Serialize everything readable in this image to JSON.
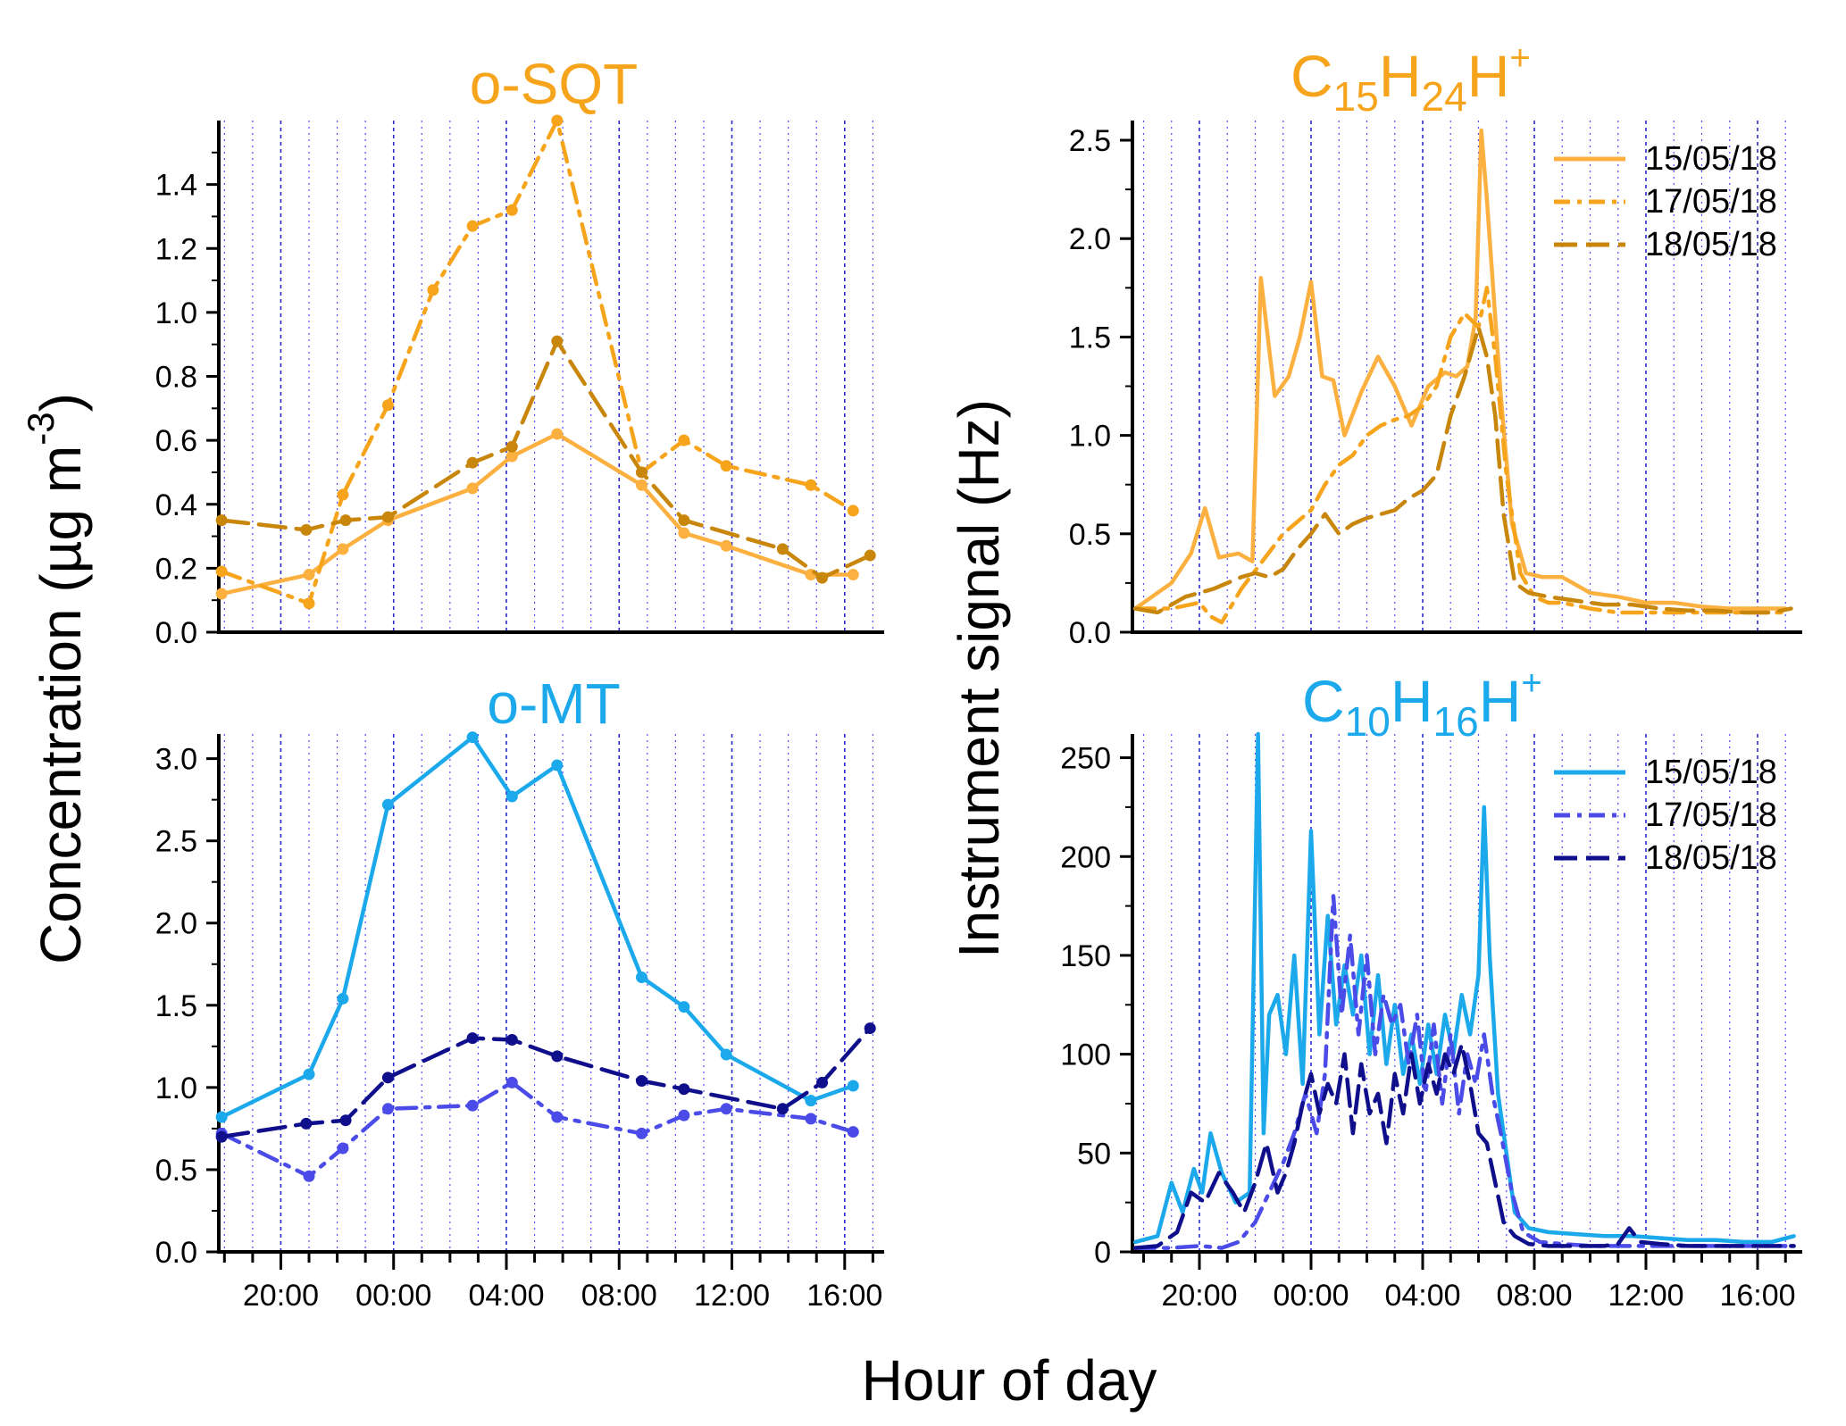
{
  "figure": {
    "shared_xlabel": "Hour of day",
    "left_ylabel_main": "Concentration (µg m",
    "left_ylabel_exp": "-3",
    "left_ylabel_close": ")",
    "right_ylabel": "Instrument signal (Hz)"
  },
  "colors": {
    "light_orange": "#FBB040",
    "mid_orange": "#F7A41D",
    "dark_orange": "#C8860B",
    "light_blue": "#1CA9EC",
    "mid_blue": "#4B4BE8",
    "dark_blue": "#0F0F8C",
    "grid_dotted": "#4D4DFF",
    "grid_dashed": "#2A2AD0"
  },
  "chart_data": [
    {
      "id": "osqt",
      "type": "line",
      "title": "o-SQT",
      "title_color": "#F7A41D",
      "xlabel": "Hour of day",
      "ylabel": "Concentration (µg m-3)",
      "xlim": [
        -6.2,
        17.4
      ],
      "ylim": [
        0,
        1.6
      ],
      "yticks": [
        0.0,
        0.2,
        0.4,
        0.6,
        0.8,
        1.0,
        1.2,
        1.4
      ],
      "ytick_labels": [
        "0.0",
        "0.2",
        "0.4",
        "0.6",
        "0.8",
        "1.0",
        "1.2",
        "1.4"
      ],
      "series": [
        {
          "name": "15/05/18",
          "style": "solid",
          "color": "#FBB040",
          "x": [
            -6.1,
            -3.0,
            -1.8,
            -0.2,
            2.8,
            4.2,
            5.8,
            8.8,
            10.3,
            11.8,
            14.8,
            16.3
          ],
          "y": [
            0.12,
            0.18,
            0.26,
            0.35,
            0.45,
            0.55,
            0.62,
            0.46,
            0.31,
            0.27,
            0.18,
            0.18
          ]
        },
        {
          "name": "17/05/18",
          "style": "dashdot",
          "color": "#F7A41D",
          "x": [
            -6.1,
            -3.0,
            -1.8,
            -0.2,
            1.4,
            2.8,
            4.2,
            5.8,
            8.8,
            10.3,
            11.8,
            14.8,
            16.3
          ],
          "y": [
            0.19,
            0.09,
            0.43,
            0.71,
            1.07,
            1.27,
            1.32,
            1.6,
            0.5,
            0.6,
            0.52,
            0.46,
            0.38
          ]
        },
        {
          "name": "18/05/18",
          "style": "dashed",
          "color": "#C8860B",
          "x": [
            -6.1,
            -3.1,
            -1.7,
            -0.2,
            2.8,
            4.2,
            5.8,
            8.8,
            10.3,
            13.8,
            15.2,
            16.9
          ],
          "y": [
            0.35,
            0.32,
            0.35,
            0.36,
            0.53,
            0.58,
            0.91,
            0.5,
            0.35,
            0.26,
            0.17,
            0.24
          ]
        }
      ]
    },
    {
      "id": "omt",
      "type": "line",
      "title": "o-MT",
      "title_color": "#1CA9EC",
      "xlabel": "Hour of day",
      "ylabel": "Concentration (µg m-3)",
      "xlim": [
        -6.2,
        17.4
      ],
      "ylim": [
        0,
        3.15
      ],
      "yticks": [
        0.0,
        0.5,
        1.0,
        1.5,
        2.0,
        2.5,
        3.0
      ],
      "ytick_labels": [
        "0.0",
        "0.5",
        "1.0",
        "1.5",
        "2.0",
        "2.5",
        "3.0"
      ],
      "xticks": [
        -4,
        0,
        4,
        8,
        12,
        16
      ],
      "xtick_labels": [
        "20:00",
        "00:00",
        "04:00",
        "08:00",
        "12:00",
        "16:00"
      ],
      "series": [
        {
          "name": "15/05/18",
          "style": "solid",
          "color": "#1CA9EC",
          "x": [
            -6.1,
            -3.0,
            -1.8,
            -0.2,
            2.8,
            4.2,
            5.8,
            8.8,
            10.3,
            11.8,
            14.8,
            16.3
          ],
          "y": [
            0.82,
            1.08,
            1.54,
            2.72,
            3.13,
            2.77,
            2.96,
            1.67,
            1.49,
            1.2,
            0.92,
            1.01
          ]
        },
        {
          "name": "17/05/18",
          "style": "dashdot",
          "color": "#4B4BE8",
          "x": [
            -6.1,
            -3.0,
            -1.8,
            -0.2,
            2.8,
            4.2,
            5.8,
            8.8,
            10.3,
            11.8,
            14.8,
            16.3
          ],
          "y": [
            0.72,
            0.46,
            0.63,
            0.87,
            0.89,
            1.03,
            0.82,
            0.72,
            0.83,
            0.87,
            0.81,
            0.73
          ]
        },
        {
          "name": "18/05/18",
          "style": "dashed",
          "color": "#0F0F8C",
          "x": [
            -6.1,
            -3.1,
            -1.7,
            -0.2,
            2.8,
            4.2,
            5.8,
            8.8,
            10.3,
            13.8,
            15.2,
            16.9
          ],
          "y": [
            0.7,
            0.78,
            0.8,
            1.06,
            1.3,
            1.29,
            1.19,
            1.04,
            0.99,
            0.87,
            1.03,
            1.36
          ]
        }
      ]
    },
    {
      "id": "c15",
      "type": "line",
      "title_base": "C",
      "title_sub1": "15",
      "title_mid": "H",
      "title_sub2": "24",
      "title_end": "H",
      "title_sup": "+",
      "title_color": "#F7A41D",
      "xlabel": "Hour of day",
      "ylabel": "Instrument signal (Hz)",
      "xlim": [
        -6.4,
        17.6
      ],
      "ylim": [
        0,
        2.6
      ],
      "yticks": [
        0.0,
        0.5,
        1.0,
        1.5,
        2.0,
        2.5
      ],
      "ytick_labels": [
        "0.0",
        "0.5",
        "1.0",
        "1.5",
        "2.0",
        "2.5"
      ],
      "legend": "top-right",
      "series": [
        {
          "name": "15/05/18",
          "style": "solid",
          "color": "#FBB040",
          "x": [
            -6.3,
            -5.0,
            -4.3,
            -3.8,
            -3.3,
            -2.6,
            -2.1,
            -1.8,
            -1.3,
            -0.8,
            -0.4,
            0.0,
            0.4,
            0.8,
            1.2,
            1.8,
            2.4,
            3.0,
            3.6,
            4.2,
            4.8,
            5.2,
            5.6,
            5.9,
            6.1,
            6.3,
            6.5,
            6.8,
            7.2,
            7.7,
            8.3,
            9.0,
            10.0,
            11.0,
            12.0,
            13.0,
            14.0,
            15.0,
            16.0,
            17.0
          ],
          "y": [
            0.12,
            0.25,
            0.4,
            0.63,
            0.38,
            0.4,
            0.36,
            1.8,
            1.2,
            1.3,
            1.5,
            1.78,
            1.3,
            1.28,
            1.0,
            1.22,
            1.4,
            1.25,
            1.05,
            1.25,
            1.32,
            1.3,
            1.35,
            1.6,
            2.55,
            2.2,
            1.8,
            1.2,
            0.55,
            0.3,
            0.28,
            0.28,
            0.2,
            0.18,
            0.15,
            0.15,
            0.13,
            0.12,
            0.12,
            0.12
          ]
        },
        {
          "name": "17/05/18",
          "style": "dashdot",
          "color": "#F7A41D",
          "x": [
            -6.3,
            -5.0,
            -4.0,
            -3.6,
            -3.2,
            -2.5,
            -1.8,
            -1.0,
            0.0,
            0.5,
            1.0,
            1.5,
            2.0,
            2.5,
            3.0,
            3.5,
            4.0,
            4.5,
            5.0,
            5.5,
            6.0,
            6.3,
            6.6,
            7.0,
            7.5,
            8.0,
            8.5,
            9.0,
            10.0,
            11.0,
            12.0,
            13.0,
            14.0,
            15.0,
            16.0,
            17.0
          ],
          "y": [
            0.12,
            0.12,
            0.15,
            0.08,
            0.05,
            0.22,
            0.35,
            0.5,
            0.62,
            0.75,
            0.85,
            0.9,
            1.0,
            1.05,
            1.08,
            1.1,
            1.15,
            1.25,
            1.5,
            1.62,
            1.55,
            1.75,
            1.4,
            0.8,
            0.3,
            0.18,
            0.15,
            0.15,
            0.12,
            0.1,
            0.1,
            0.1,
            0.1,
            0.1,
            0.1,
            0.1
          ]
        },
        {
          "name": "18/05/18",
          "style": "dashed",
          "color": "#C8860B",
          "x": [
            -6.3,
            -5.5,
            -4.5,
            -3.5,
            -2.5,
            -2.0,
            -1.5,
            -1.0,
            -0.5,
            0.0,
            0.5,
            1.0,
            1.5,
            2.0,
            2.5,
            3.0,
            3.5,
            4.0,
            4.5,
            5.0,
            5.5,
            6.0,
            6.3,
            6.6,
            6.9,
            7.3,
            7.8,
            8.5,
            9.5,
            10.5,
            11.5,
            12.5,
            13.5,
            14.5,
            15.5,
            16.5,
            17.2
          ],
          "y": [
            0.12,
            0.1,
            0.18,
            0.22,
            0.28,
            0.3,
            0.28,
            0.32,
            0.42,
            0.5,
            0.6,
            0.5,
            0.55,
            0.58,
            0.6,
            0.62,
            0.68,
            0.72,
            0.8,
            1.1,
            1.3,
            1.55,
            1.4,
            1.1,
            0.6,
            0.25,
            0.2,
            0.18,
            0.16,
            0.14,
            0.14,
            0.12,
            0.11,
            0.11,
            0.1,
            0.1,
            0.12
          ]
        }
      ]
    },
    {
      "id": "c10",
      "type": "line",
      "title_base": "C",
      "title_sub1": "10",
      "title_mid": "H",
      "title_sub2": "16",
      "title_end": "H",
      "title_sup": "+",
      "title_color": "#1CA9EC",
      "xlabel": "Hour of day",
      "ylabel": "Instrument signal (Hz)",
      "xlim": [
        -6.4,
        17.6
      ],
      "ylim": [
        0,
        262
      ],
      "yticks": [
        0,
        50,
        100,
        150,
        200,
        250
      ],
      "ytick_labels": [
        "0",
        "50",
        "100",
        "150",
        "200",
        "250"
      ],
      "xticks": [
        -4,
        0,
        4,
        8,
        12,
        16
      ],
      "xtick_labels": [
        "20:00",
        "00:00",
        "04:00",
        "08:00",
        "12:00",
        "16:00"
      ],
      "legend": "top-right",
      "series": [
        {
          "name": "15/05/18",
          "style": "solid",
          "color": "#1CA9EC",
          "x": [
            -6.3,
            -5.5,
            -5.0,
            -4.6,
            -4.2,
            -3.9,
            -3.6,
            -3.2,
            -2.7,
            -2.2,
            -1.9,
            -1.7,
            -1.5,
            -1.2,
            -0.9,
            -0.6,
            -0.3,
            0.0,
            0.3,
            0.6,
            0.9,
            1.2,
            1.5,
            1.8,
            2.1,
            2.4,
            2.7,
            3.0,
            3.3,
            3.6,
            3.9,
            4.2,
            4.5,
            4.8,
            5.1,
            5.4,
            5.7,
            6.0,
            6.2,
            6.4,
            6.7,
            7.0,
            7.3,
            7.8,
            8.5,
            9.5,
            10.5,
            11.5,
            12.5,
            13.5,
            14.5,
            15.5,
            16.5,
            17.3
          ],
          "y": [
            5,
            8,
            35,
            20,
            42,
            30,
            60,
            40,
            25,
            30,
            262,
            60,
            120,
            130,
            100,
            150,
            85,
            213,
            110,
            170,
            115,
            145,
            120,
            150,
            100,
            140,
            95,
            125,
            90,
            110,
            85,
            115,
            90,
            120,
            100,
            130,
            110,
            140,
            225,
            150,
            80,
            50,
            20,
            12,
            10,
            9,
            8,
            8,
            7,
            6,
            6,
            5,
            5,
            8
          ]
        },
        {
          "name": "17/05/18",
          "style": "dashdot",
          "color": "#4B4BE8",
          "x": [
            -6.3,
            -5.0,
            -4.0,
            -3.2,
            -2.6,
            -2.0,
            -1.5,
            -1.0,
            -0.6,
            -0.2,
            0.2,
            0.5,
            0.8,
            1.1,
            1.4,
            1.7,
            2.0,
            2.3,
            2.6,
            2.9,
            3.2,
            3.5,
            3.8,
            4.1,
            4.4,
            4.7,
            5.0,
            5.3,
            5.6,
            5.9,
            6.2,
            6.5,
            6.8,
            7.2,
            7.6,
            8.2,
            9.0,
            10.0,
            11.0,
            12.0,
            13.0,
            14.0,
            15.0,
            16.0,
            17.0
          ],
          "y": [
            2,
            2,
            3,
            2,
            5,
            15,
            30,
            45,
            60,
            80,
            60,
            90,
            180,
            120,
            160,
            110,
            150,
            100,
            130,
            115,
            125,
            95,
            120,
            80,
            115,
            75,
            110,
            70,
            100,
            85,
            110,
            80,
            60,
            30,
            10,
            5,
            4,
            3,
            3,
            3,
            3,
            3,
            3,
            3,
            3
          ]
        },
        {
          "name": "18/05/18",
          "style": "dashed",
          "color": "#0F0F8C",
          "x": [
            -6.3,
            -5.5,
            -4.8,
            -4.3,
            -3.8,
            -3.3,
            -2.8,
            -2.4,
            -2.0,
            -1.6,
            -1.2,
            -0.9,
            -0.6,
            -0.3,
            0.0,
            0.3,
            0.6,
            0.9,
            1.2,
            1.5,
            1.8,
            2.1,
            2.4,
            2.7,
            3.0,
            3.3,
            3.6,
            3.9,
            4.2,
            4.5,
            4.8,
            5.1,
            5.4,
            5.7,
            6.0,
            6.3,
            6.6,
            6.9,
            7.3,
            7.8,
            8.5,
            9.5,
            10.5,
            11.0,
            11.4,
            11.8,
            12.5,
            13.5,
            14.5,
            15.5,
            16.5,
            17.3
          ],
          "y": [
            2,
            3,
            10,
            30,
            25,
            40,
            30,
            20,
            35,
            55,
            30,
            40,
            55,
            75,
            90,
            70,
            85,
            75,
            100,
            60,
            95,
            70,
            80,
            55,
            90,
            70,
            100,
            75,
            95,
            80,
            100,
            90,
            105,
            85,
            60,
            55,
            35,
            15,
            8,
            4,
            3,
            3,
            3,
            4,
            12,
            5,
            4,
            3,
            3,
            3,
            3,
            3
          ]
        }
      ]
    }
  ]
}
